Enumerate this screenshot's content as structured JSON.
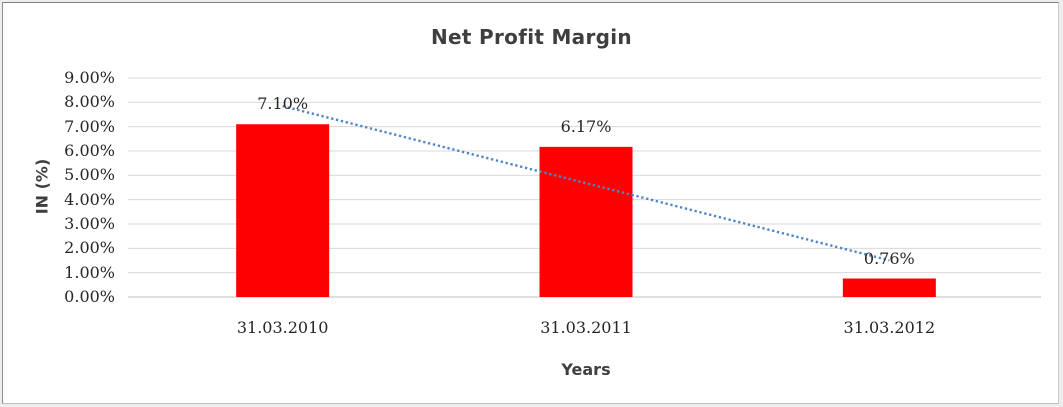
{
  "chart_data": {
    "type": "bar",
    "title": "Net Profit Margin",
    "xlabel": "Years",
    "ylabel": "IN (%)",
    "categories": [
      "31.03.2010",
      "31.03.2011",
      "31.03.2012"
    ],
    "values": [
      7.1,
      6.17,
      0.76
    ],
    "value_labels": [
      "7.10%",
      "6.17%",
      "0.76%"
    ],
    "y_ticks": [
      "9.00%",
      "8.00%",
      "7.00%",
      "6.00%",
      "5.00%",
      "4.00%",
      "3.00%",
      "2.00%",
      "1.00%",
      "0.00%"
    ],
    "ylim": [
      0,
      9
    ],
    "y_step": 1,
    "grid": true,
    "legend": "none",
    "bar_color": "#ff0000",
    "trendline": {
      "fit": "linear",
      "style": "dotted",
      "color": "#4e86c6"
    },
    "colors": {
      "gridline": "#d9d9d9",
      "axis_line": "#bfbfbf",
      "tick_text": "#262626",
      "title_text": "#3f3f3f"
    }
  }
}
